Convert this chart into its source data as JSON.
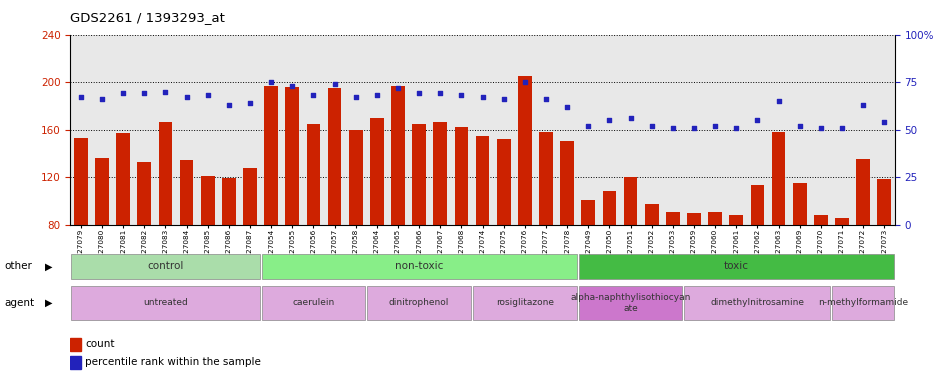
{
  "title": "GDS2261 / 1393293_at",
  "samples": [
    "GSM127079",
    "GSM127080",
    "GSM127081",
    "GSM127082",
    "GSM127083",
    "GSM127084",
    "GSM127085",
    "GSM127086",
    "GSM127087",
    "GSM127054",
    "GSM127055",
    "GSM127056",
    "GSM127057",
    "GSM127058",
    "GSM127064",
    "GSM127065",
    "GSM127066",
    "GSM127067",
    "GSM127068",
    "GSM127074",
    "GSM127075",
    "GSM127076",
    "GSM127077",
    "GSM127078",
    "GSM127049",
    "GSM127050",
    "GSM127051",
    "GSM127052",
    "GSM127053",
    "GSM127059",
    "GSM127060",
    "GSM127061",
    "GSM127062",
    "GSM127063",
    "GSM127069",
    "GSM127070",
    "GSM127071",
    "GSM127072",
    "GSM127073"
  ],
  "counts": [
    153,
    136,
    157,
    133,
    166,
    134,
    121,
    119,
    128,
    197,
    196,
    165,
    195,
    160,
    170,
    197,
    165,
    166,
    162,
    155,
    152,
    205,
    158,
    150,
    101,
    108,
    120,
    97,
    91,
    90,
    91,
    88,
    113,
    158,
    115,
    88,
    86,
    135,
    118
  ],
  "percentiles": [
    67,
    66,
    69,
    69,
    70,
    67,
    68,
    63,
    64,
    75,
    73,
    68,
    74,
    67,
    68,
    72,
    69,
    69,
    68,
    67,
    66,
    75,
    66,
    62,
    52,
    55,
    56,
    52,
    51,
    51,
    52,
    51,
    55,
    65,
    52,
    51,
    51,
    63,
    54
  ],
  "bar_color": "#cc2200",
  "dot_color": "#2222bb",
  "plot_bg": "#e8e8e8",
  "control_color": "#aaddaa",
  "nontoxic_color": "#88ee88",
  "toxic_color": "#44bb44",
  "agent_light": "#ddaadd",
  "agent_dark": "#cc77cc",
  "other_groups": [
    {
      "label": "control",
      "start": 0,
      "end": 9
    },
    {
      "label": "non-toxic",
      "start": 9,
      "end": 24
    },
    {
      "label": "toxic",
      "start": 24,
      "end": 39
    }
  ],
  "agent_groups": [
    {
      "label": "untreated",
      "start": 0,
      "end": 9,
      "dark": false
    },
    {
      "label": "caerulein",
      "start": 9,
      "end": 14,
      "dark": false
    },
    {
      "label": "dinitrophenol",
      "start": 14,
      "end": 19,
      "dark": false
    },
    {
      "label": "rosiglitazone",
      "start": 19,
      "end": 24,
      "dark": false
    },
    {
      "label": "alpha-naphthylisothiocyan\nate",
      "start": 24,
      "end": 29,
      "dark": true
    },
    {
      "label": "dimethylnitrosamine",
      "start": 29,
      "end": 36,
      "dark": false
    },
    {
      "label": "n-methylformamide",
      "start": 36,
      "end": 39,
      "dark": false
    }
  ],
  "ylim_left": [
    80,
    240
  ],
  "ylim_right": [
    0,
    100
  ]
}
